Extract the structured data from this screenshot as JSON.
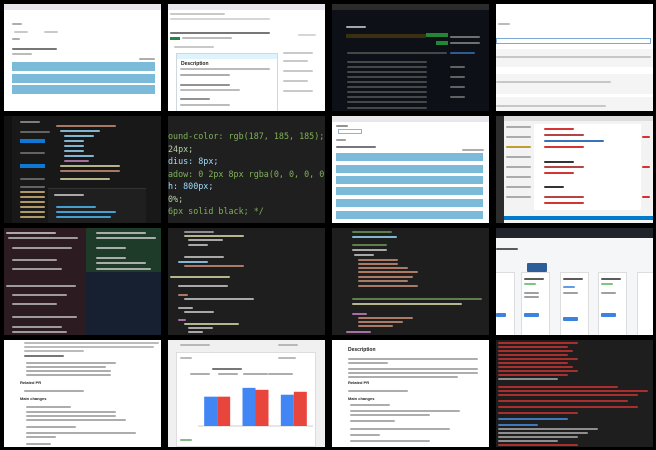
{
  "panels": {
    "css_snippet": {
      "lines": [
        "ound-color: rgb(187, 185, 185); */",
        "24px;",
        "dius: 8px;",
        "adow: 0 2px 8px rgba(0, 0, 0, 0.2); */",
        "h: 800px;",
        "0%;",
        "6px solid black; */"
      ]
    },
    "pr_description_a": {
      "related": "Related PR",
      "changes": "Main changes"
    },
    "pr_description_b": {
      "heading": "Description",
      "related": "Related PR",
      "changes": "Main changes"
    },
    "github_issue": {
      "section": "Description"
    }
  },
  "colors": {
    "bar_blue": "#4285f4",
    "bar_red": "#e8453c",
    "list_bar": "#7bbad8",
    "vscode_blue": "#007acc",
    "github_green": "#238636"
  },
  "chart_data": {
    "type": "bar",
    "categories": [
      "",
      "",
      ""
    ],
    "series": [
      {
        "color": "#4285f4",
        "values": [
          3.0,
          3.9,
          3.2
        ]
      },
      {
        "color": "#e8453c",
        "values": [
          3.0,
          3.7,
          3.5
        ]
      }
    ],
    "ylim": [
      0,
      4.5
    ],
    "legend": "top"
  }
}
